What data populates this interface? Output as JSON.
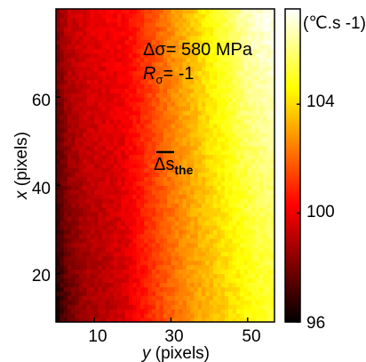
{
  "chart_data": {
    "type": "heatmap",
    "xlabel": {
      "var": "y",
      "unit": "(pixels)"
    },
    "ylabel": {
      "var": "x",
      "unit": "(pixels)"
    },
    "xlim": [
      0,
      57
    ],
    "ylim": [
      9,
      80
    ],
    "x_ticks": [
      10,
      30,
      50
    ],
    "y_ticks": [
      20,
      40,
      60
    ],
    "colorbar": {
      "label": "(℃.s -1)",
      "range": [
        96,
        107.5
      ],
      "ticks": [
        96,
        100,
        104
      ],
      "colormap": "hot"
    },
    "annotations": {
      "stress": "Δσ= 580 MPa",
      "ratio_var": "R",
      "ratio_sub": "σ",
      "ratio_val": "= -1",
      "marker_main": "Δs",
      "marker_sub": "the"
    },
    "grid": {
      "cols": 57,
      "rows": 71
    },
    "field": {
      "x_knots": [
        0,
        3,
        8,
        12,
        18,
        22,
        26,
        30,
        35,
        40,
        45,
        50,
        54,
        57
      ],
      "profile_at_x15": [
        96.5,
        97.8,
        98.8,
        99.0,
        99.6,
        100.5,
        101.3,
        102.0,
        102.8,
        103.4,
        104.0,
        104.6,
        105.0,
        105.2
      ],
      "profile_at_x78": [
        98.3,
        99.3,
        99.8,
        100.0,
        100.3,
        101.0,
        101.8,
        102.7,
        103.6,
        104.6,
        105.6,
        106.7,
        107.1,
        107.3
      ]
    }
  }
}
